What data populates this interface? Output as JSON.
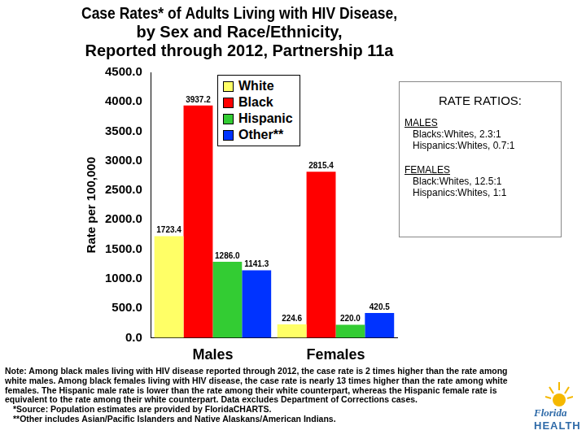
{
  "chart_data": {
    "type": "bar",
    "title": [
      "Case Rates* of Adults Living with HIV Disease,",
      "by Sex and Race/Ethnicity,",
      "Reported through 2012, Partnership 11a"
    ],
    "y_label": "Rate per 100,000",
    "categories": [
      "Males",
      "Females"
    ],
    "series": [
      {
        "name": "White",
        "color": "#ffff66",
        "values": [
          1723.4,
          224.6
        ]
      },
      {
        "name": "Black",
        "color": "#ff0000",
        "values": [
          3937.2,
          2815.4
        ]
      },
      {
        "name": "Hispanic",
        "color": "#33cc33",
        "values": [
          1286.0,
          220.0
        ],
        "value_labels": [
          "1286.0",
          "220.0"
        ]
      },
      {
        "name": "Other**",
        "color": "#0033ff",
        "values": [
          1141.3,
          420.5
        ]
      }
    ],
    "ylim": [
      0,
      4500
    ],
    "yticks": [
      {
        "value": 0,
        "label": "0.0"
      },
      {
        "value": 500,
        "label": "500.0"
      },
      {
        "value": 1000,
        "label": "1000.0"
      },
      {
        "value": 1500,
        "label": "1500.0"
      },
      {
        "value": 2000,
        "label": "2000.0"
      },
      {
        "value": 2500,
        "label": "2500.0"
      },
      {
        "value": 3000,
        "label": "3000.0"
      },
      {
        "value": 3500,
        "label": "3500.0"
      },
      {
        "value": 4000,
        "label": "4000.0"
      },
      {
        "value": 4500,
        "label": "4500.0"
      }
    ],
    "grid": false,
    "legend": "top",
    "data_labels": true,
    "annotations": {
      "rate_ratios": {
        "heading": "RATE RATIOS:",
        "groups": [
          {
            "name": "MALES",
            "lines": [
              "Blacks:Whites, 2.3:1",
              "Hispanics:Whites, 0.7:1"
            ]
          },
          {
            "name": "FEMALES",
            "lines": [
              "Black:Whites, 12.5:1",
              "Hispanics:Whites, 1:1"
            ]
          }
        ]
      },
      "note": "Note:  Among black males living with HIV disease reported through 2012, the case rate is 2 times higher than the rate among white males.  Among black females living with HIV disease, the case rate is nearly 13 times higher than the rate among white females.  The Hispanic male rate is lower than the rate among their white counterpart, whereas the Hispanic female rate is equivalent to the rate among their white counterpart.  Data excludes Department of Corrections cases.",
      "footnotes": [
        "*Source: Population estimates are provided by FloridaCHARTS.",
        "**Other includes Asian/Pacific Islanders and Native Alaskans/American Indians."
      ],
      "logo": [
        "Florida",
        "HEALTH"
      ]
    }
  }
}
